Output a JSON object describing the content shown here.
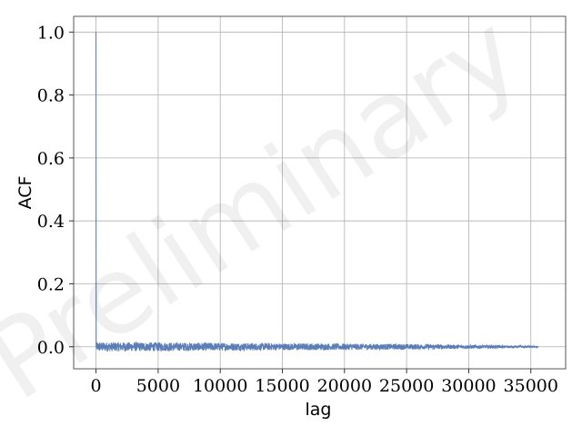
{
  "chart_data": {
    "type": "line",
    "xlabel": "lag",
    "ylabel": "ACF",
    "xlim": [
      -1800,
      37800
    ],
    "ylim": [
      -0.07,
      1.05
    ],
    "xticks": [
      0,
      5000,
      10000,
      15000,
      20000,
      25000,
      30000,
      35000
    ],
    "yticks": [
      0.0,
      0.2,
      0.4,
      0.6,
      0.8,
      1.0
    ],
    "xtick_labels": [
      "0",
      "5000",
      "10000",
      "15000",
      "20000",
      "25000",
      "30000",
      "35000"
    ],
    "ytick_labels": [
      "0.0",
      "0.2",
      "0.4",
      "0.6",
      "0.8",
      "1.0"
    ],
    "grid": true,
    "series": [
      {
        "color": "#4c72b0",
        "x_start": 0,
        "x_end": 35600,
        "start_value": 1.0,
        "noise_envelope": [
          {
            "lag": 0,
            "amplitude": 0.015
          },
          {
            "lag": 5000,
            "amplitude": 0.014
          },
          {
            "lag": 15000,
            "amplitude": 0.011
          },
          {
            "lag": 25000,
            "amplitude": 0.009
          },
          {
            "lag": 30000,
            "amplitude": 0.006
          },
          {
            "lag": 35600,
            "amplitude": 0.002
          }
        ]
      }
    ],
    "watermark": "Preliminary"
  }
}
